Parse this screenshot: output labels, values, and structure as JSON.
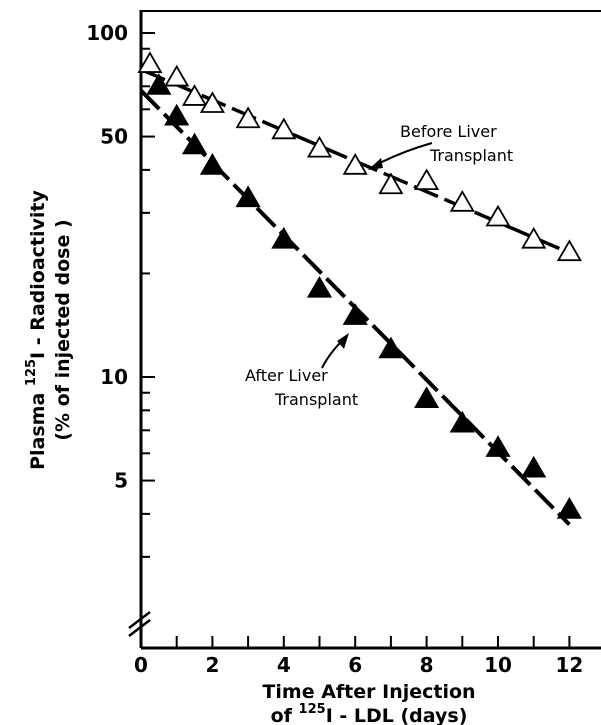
{
  "chart_data": {
    "type": "scatter",
    "y_scale": "log",
    "x_ticks": [
      "0",
      "2",
      "4",
      "6",
      "8",
      "10",
      "12"
    ],
    "y_tick_labels": [
      "100",
      "50",
      "10",
      "5"
    ],
    "xlabel_line1": "Time  After  Injection",
    "xlabel_line2_prefix": "of  ",
    "xlabel_sup": "125",
    "xlabel_line2_suffix": "I - LDL  (days)",
    "ylabel_prefix": "Plasma  ",
    "ylabel_sup": "125",
    "ylabel_suffix": "I - Radioactivity",
    "ylabel_line2": "(% of  injected dose )",
    "xlim": [
      0,
      13.4
    ],
    "ylim": [
      2.6,
      100
    ],
    "series": [
      {
        "name": "Before Liver Transplant",
        "label_line1": "Before Liver",
        "label_line2": "Transplant",
        "marker": "open-triangle",
        "x": [
          0.25,
          1,
          1.5,
          2,
          3,
          4,
          5,
          6,
          7,
          8,
          9,
          10,
          11,
          12
        ],
        "y": [
          81,
          74,
          65,
          62,
          56,
          52,
          46,
          41,
          36,
          37,
          32,
          29,
          25,
          23
        ]
      },
      {
        "name": "After Liver Transplant",
        "label_line1": "After  Liver",
        "label_line2": "Transplant",
        "marker": "filled-triangle",
        "x": [
          0.5,
          1,
          1.5,
          2,
          3,
          4,
          5,
          6,
          7,
          8,
          9,
          10,
          11,
          12
        ],
        "y": [
          70,
          57,
          47,
          41,
          33,
          25,
          18,
          15,
          12,
          8.6,
          7.3,
          6.2,
          5.4,
          4.1
        ]
      }
    ]
  }
}
